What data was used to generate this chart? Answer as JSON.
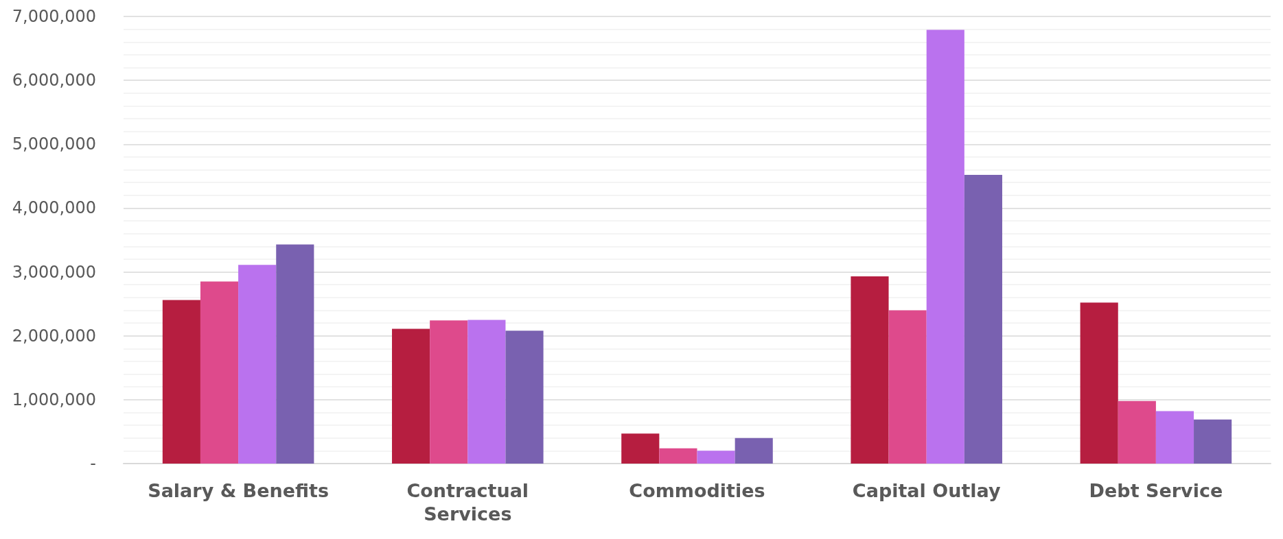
{
  "chart_data": {
    "type": "bar",
    "categories": [
      "Salary & Benefits",
      "Contractual Services",
      "Commodities",
      "Capital Outlay",
      "Debt Service"
    ],
    "series": [
      {
        "color": "#b61e40",
        "values": [
          2560000,
          2110000,
          470000,
          2930000,
          2520000
        ]
      },
      {
        "color": "#de4a8c",
        "values": [
          2850000,
          2240000,
          240000,
          2400000,
          980000
        ]
      },
      {
        "color": "#ba72ee",
        "values": [
          3110000,
          2250000,
          200000,
          6790000,
          820000
        ]
      },
      {
        "color": "#7961b0",
        "values": [
          3430000,
          2080000,
          400000,
          4520000,
          690000
        ]
      }
    ],
    "ylim": [
      0,
      7000000
    ],
    "yticks": [
      {
        "value": 0,
        "label": "-"
      },
      {
        "value": 1000000,
        "label": "1,000,000"
      },
      {
        "value": 2000000,
        "label": "2,000,000"
      },
      {
        "value": 3000000,
        "label": "3,000,000"
      },
      {
        "value": 4000000,
        "label": "4,000,000"
      },
      {
        "value": 5000000,
        "label": "5,000,000"
      },
      {
        "value": 6000000,
        "label": "6,000,000"
      },
      {
        "value": 7000000,
        "label": "7,000,000"
      }
    ],
    "grid": "y"
  }
}
